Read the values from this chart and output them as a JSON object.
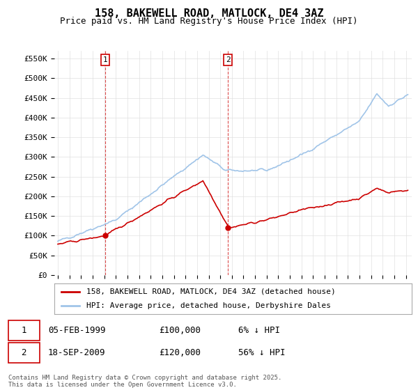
{
  "title": "158, BAKEWELL ROAD, MATLOCK, DE4 3AZ",
  "subtitle": "Price paid vs. HM Land Registry's House Price Index (HPI)",
  "hpi_label": "HPI: Average price, detached house, Derbyshire Dales",
  "property_label": "158, BAKEWELL ROAD, MATLOCK, DE4 3AZ (detached house)",
  "hpi_color": "#a0c4e8",
  "property_color": "#cc0000",
  "vline_color": "#cc0000",
  "purchase1_date": "05-FEB-1999",
  "purchase1_price": 100000,
  "purchase1_pct": "6% ↓ HPI",
  "purchase2_date": "18-SEP-2009",
  "purchase2_price": 120000,
  "purchase2_pct": "56% ↓ HPI",
  "yticks": [
    0,
    50000,
    100000,
    150000,
    200000,
    250000,
    300000,
    350000,
    400000,
    450000,
    500000,
    550000
  ],
  "ylim": [
    0,
    570000
  ],
  "footnote": "Contains HM Land Registry data © Crown copyright and database right 2025.\nThis data is licensed under the Open Government Licence v3.0.",
  "background_color": "#ffffff",
  "grid_color": "#e0e0e0"
}
